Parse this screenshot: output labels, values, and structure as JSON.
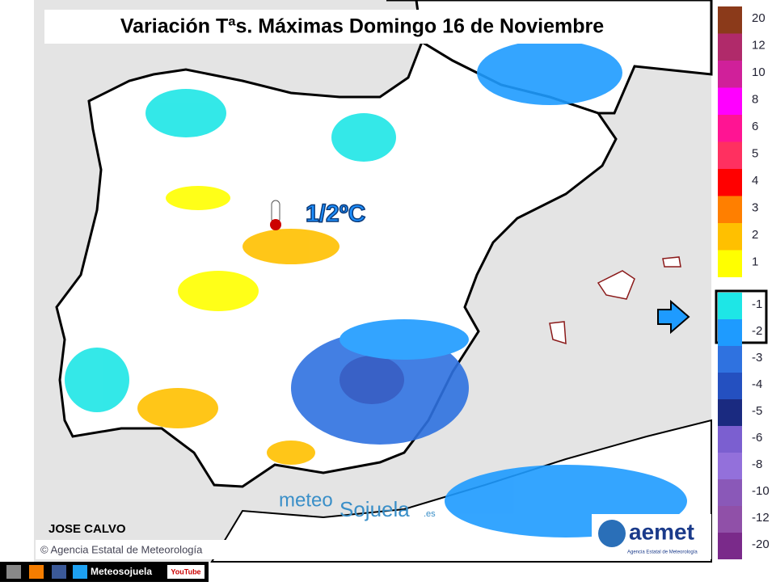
{
  "title": "Variación Tªs. Máximas Domingo 16 de Noviembre",
  "annotation": "1/2ºC",
  "legend": [
    {
      "value": 20,
      "color": "#8b3a1a"
    },
    {
      "value": 12,
      "color": "#b02a6a"
    },
    {
      "value": 10,
      "color": "#d0209a"
    },
    {
      "value": 8,
      "color": "#ff00ff"
    },
    {
      "value": 6,
      "color": "#ff1493"
    },
    {
      "value": 5,
      "color": "#ff3060"
    },
    {
      "value": 4,
      "color": "#ff0000"
    },
    {
      "value": 3,
      "color": "#ff7f00"
    },
    {
      "value": 2,
      "color": "#ffc000"
    },
    {
      "value": 1,
      "color": "#ffff00"
    },
    {
      "value": -1,
      "color": "#1ee6e6"
    },
    {
      "value": -2,
      "color": "#1e9bff"
    },
    {
      "value": -3,
      "color": "#2f72e0"
    },
    {
      "value": -4,
      "color": "#2450c0"
    },
    {
      "value": -5,
      "color": "#1a2a80"
    },
    {
      "value": -6,
      "color": "#7b5fd0"
    },
    {
      "value": -8,
      "color": "#9370db"
    },
    {
      "value": -10,
      "color": "#8a58b8"
    },
    {
      "value": -12,
      "color": "#9050a8"
    },
    {
      "value": -20,
      "color": "#7a2a8a"
    }
  ],
  "credits": {
    "author": "JOSE CALVO",
    "copyright": "© Agencia Estatal de Meteorología"
  },
  "watermark": {
    "part1": "meteo",
    "part2": "Sojuela",
    "part3": ".es"
  },
  "logo": {
    "name": "aemet",
    "subtitle": "Agencia Estatal de Meteorología"
  },
  "footer": {
    "social": "Meteosojuela",
    "video": "YouTube"
  }
}
